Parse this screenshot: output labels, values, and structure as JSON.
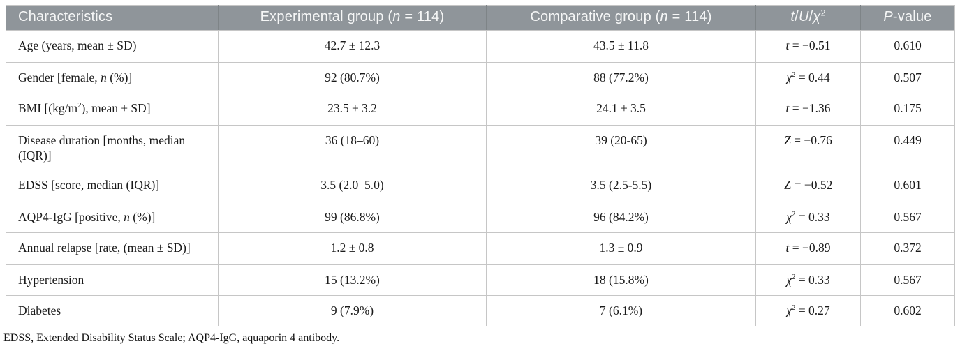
{
  "colors": {
    "header_bg": "#8f959a",
    "header_text": "#f6f7f7",
    "header_divider": "#7e8487",
    "body_border": "#c6c6c6",
    "body_text": "#1a1a1a",
    "page_bg": "#ffffff"
  },
  "columns": [
    {
      "key": "characteristics",
      "label": [
        {
          "t": "Characteristics"
        }
      ]
    },
    {
      "key": "experimental_group",
      "label": [
        {
          "t": "Experimental group ("
        },
        {
          "t": "n",
          "i": true
        },
        {
          "t": " = 114)"
        }
      ]
    },
    {
      "key": "comparative_group",
      "label": [
        {
          "t": "Comparative group ("
        },
        {
          "t": "n",
          "i": true
        },
        {
          "t": " = 114)"
        }
      ]
    },
    {
      "key": "statistic",
      "label": [
        {
          "t": "t",
          "i": true
        },
        {
          "t": "/"
        },
        {
          "t": "U",
          "i": true
        },
        {
          "t": "/"
        },
        {
          "t": "χ",
          "i": true
        },
        {
          "t": "2",
          "sup": true
        }
      ]
    },
    {
      "key": "p_value",
      "label": [
        {
          "t": "P",
          "i": true
        },
        {
          "t": "-value"
        }
      ]
    }
  ],
  "rows": [
    {
      "cells": [
        [
          {
            "t": "Age (years, mean ± SD)"
          }
        ],
        "42.7 ± 12.3",
        "43.5 ± 11.8",
        [
          {
            "t": "t",
            "i": true
          },
          {
            "t": " = −0.51"
          }
        ],
        "0.610"
      ]
    },
    {
      "cells": [
        [
          {
            "t": "Gender [female, "
          },
          {
            "t": "n",
            "i": true
          },
          {
            "t": " (%)]"
          }
        ],
        "92 (80.7%)",
        "88 (77.2%)",
        [
          {
            "t": "χ",
            "i": true
          },
          {
            "t": "2",
            "sup": true
          },
          {
            "t": " = 0.44"
          }
        ],
        "0.507"
      ]
    },
    {
      "cells": [
        [
          {
            "t": "BMI [(kg/m"
          },
          {
            "t": "2",
            "sup": true
          },
          {
            "t": "), mean ± SD]"
          }
        ],
        "23.5 ± 3.2",
        "24.1 ± 3.5",
        [
          {
            "t": "t",
            "i": true
          },
          {
            "t": " = −1.36"
          }
        ],
        "0.175"
      ]
    },
    {
      "cells": [
        [
          {
            "t": "Disease duration [months, median (IQR)]"
          }
        ],
        "36 (18–60)",
        "39 (20-65)",
        [
          {
            "t": "Z",
            "i": true
          },
          {
            "t": " = −0.76"
          }
        ],
        "0.449"
      ]
    },
    {
      "cells": [
        [
          {
            "t": "EDSS [score, median (IQR)]"
          }
        ],
        "3.5 (2.0–5.0)",
        "3.5 (2.5-5.5)",
        [
          {
            "t": "Z = −0.52"
          }
        ],
        "0.601"
      ]
    },
    {
      "cells": [
        [
          {
            "t": "AQP4-IgG [positive, "
          },
          {
            "t": "n",
            "i": true
          },
          {
            "t": " (%)]"
          }
        ],
        "99 (86.8%)",
        "96 (84.2%)",
        [
          {
            "t": "χ",
            "i": true
          },
          {
            "t": "2",
            "sup": true
          },
          {
            "t": " = 0.33"
          }
        ],
        "0.567"
      ]
    },
    {
      "cells": [
        [
          {
            "t": "Annual relapse [rate, (mean ± SD)]"
          }
        ],
        "1.2 ± 0.8",
        "1.3 ± 0.9",
        [
          {
            "t": "t",
            "i": true
          },
          {
            "t": " = −0.89"
          }
        ],
        "0.372"
      ]
    },
    {
      "cells": [
        [
          {
            "t": "Hypertension"
          }
        ],
        "15 (13.2%)",
        "18 (15.8%)",
        [
          {
            "t": "χ",
            "i": true
          },
          {
            "t": "2",
            "sup": true
          },
          {
            "t": " = 0.33"
          }
        ],
        "0.567"
      ]
    },
    {
      "cells": [
        [
          {
            "t": "Diabetes"
          }
        ],
        "9 (7.9%)",
        "7 (6.1%)",
        [
          {
            "t": "χ",
            "i": true
          },
          {
            "t": "2",
            "sup": true
          },
          {
            "t": " = 0.27"
          }
        ],
        "0.602"
      ]
    }
  ],
  "footnote": "EDSS, Extended Disability Status Scale; AQP4-IgG, aquaporin 4 antibody."
}
